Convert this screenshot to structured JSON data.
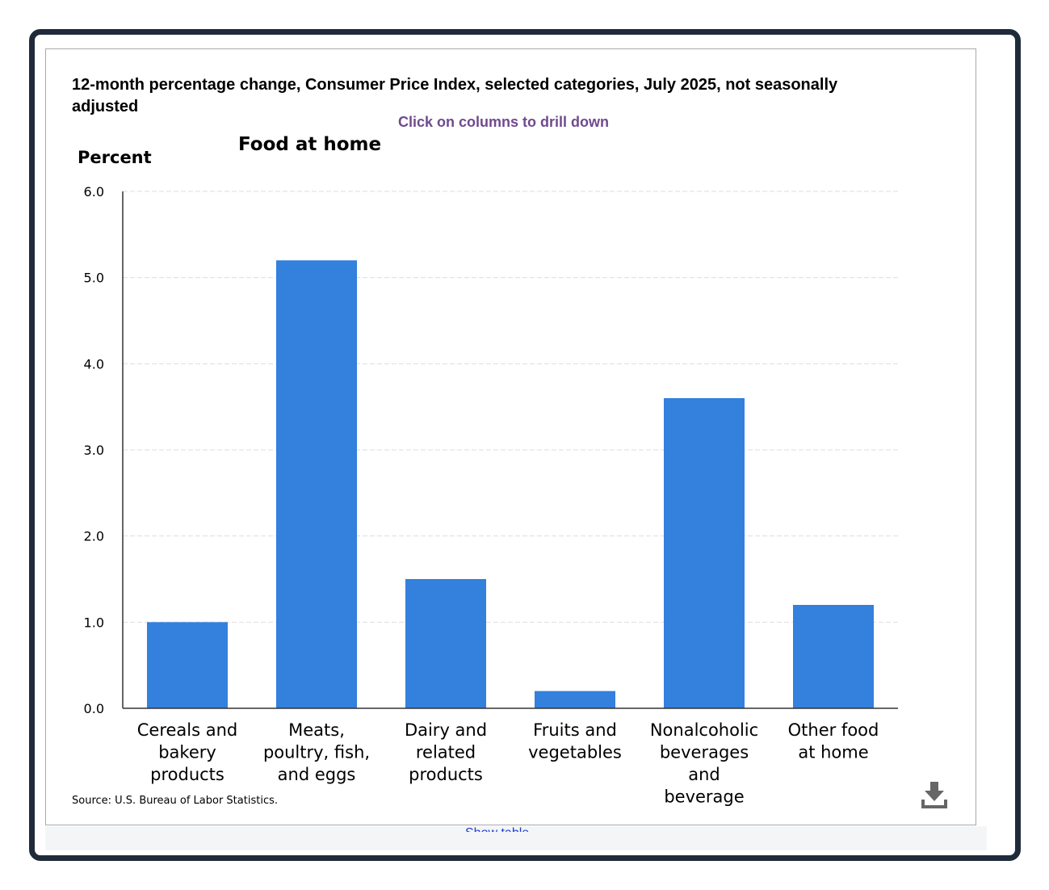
{
  "chart_title": "12-month percentage change, Consumer Price Index, selected categories, July 2025, not seasonally adjusted",
  "drill_hint": "Click on columns to drill down",
  "breadcrumb": "Food at home",
  "source": "Source: U.S. Bureau of Labor Statistics.",
  "below_link": "Show table",
  "icons": {
    "download": "download-icon"
  },
  "colors": {
    "bar": "#3380dd",
    "grid": "#dddddd",
    "axis": "#333333",
    "frame": "#1f2b3a",
    "hint": "#6f4a8e"
  },
  "chart_data": {
    "type": "bar",
    "title": "12-month percentage change, Consumer Price Index, selected categories, July 2025, not seasonally adjusted",
    "subtitle": "Food at home",
    "xlabel": "",
    "ylabel": "Percent",
    "ylim": [
      0,
      6
    ],
    "yticks": [
      "0.0",
      "1.0",
      "2.0",
      "3.0",
      "4.0",
      "5.0",
      "6.0"
    ],
    "grid": true,
    "categories": [
      [
        "Cereals and",
        "bakery",
        "products"
      ],
      [
        "Meats,",
        "poultry, fish,",
        "and eggs"
      ],
      [
        "Dairy and",
        "related",
        "products"
      ],
      [
        "Fruits and",
        "vegetables"
      ],
      [
        "Nonalcoholic",
        "beverages",
        "and",
        "beverage"
      ],
      [
        "Other food",
        "at home"
      ]
    ],
    "values": [
      1.0,
      5.2,
      1.5,
      0.2,
      3.6,
      1.2
    ]
  }
}
